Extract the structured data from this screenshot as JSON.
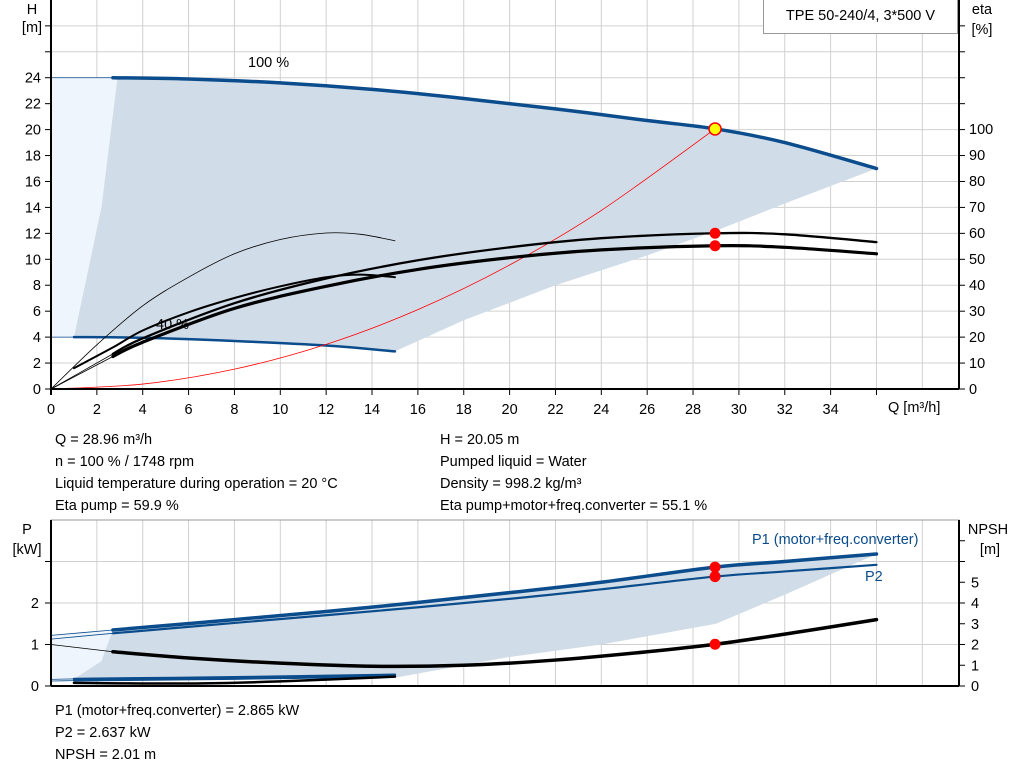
{
  "title": "TPE 50-240/4, 3*500 V",
  "colors": {
    "curve_blue": "#0b4c8c",
    "area_dark": "#d0dce8",
    "area_light": "#eef5fc",
    "grid": "#d0d0d0",
    "duty_point": "#ff0000",
    "duty_point_fill_main": "#ffff00",
    "system_curve": "#ff0000"
  },
  "info_top_left": [
    "Q = 28.96 m³/h",
    "n = 100 % / 1748 rpm",
    "Liquid temperature during operation = 20 °C",
    "Eta pump = 59.9 %"
  ],
  "info_top_right": [
    "H = 20.05 m",
    "Pumped liquid = Water",
    "Density = 998.2 kg/m³",
    "Eta pump+motor+freq.converter = 55.1 %"
  ],
  "info_bottom": [
    "P1 (motor+freq.converter) = 2.865 kW",
    "P2 = 2.637 kW",
    "NPSH = 2.01 m"
  ],
  "chart_data": [
    {
      "type": "line",
      "title": "TPE 50-240/4, 3*500 V",
      "xlabel": "Q [m³/h]",
      "ylabel_left": [
        "H",
        "[m]"
      ],
      "ylabel_right": [
        "eta",
        "[%]"
      ],
      "xlim": [
        0,
        38
      ],
      "ylim_left": [
        0,
        30
      ],
      "ylim_right_eta": [
        0,
        115
      ],
      "x_ticks": [
        "0",
        "2",
        "4",
        "6",
        "8",
        "10",
        "12",
        "14",
        "16",
        "18",
        "20",
        "22",
        "24",
        "26",
        "28",
        "30",
        "32",
        "34"
      ],
      "y_ticks_left": [
        "0",
        "2",
        "4",
        "6",
        "8",
        "10",
        "12",
        "14",
        "16",
        "18",
        "20",
        "22",
        "24"
      ],
      "y_ticks_right": [
        "0",
        "10",
        "20",
        "30",
        "40",
        "50",
        "60",
        "70",
        "80",
        "90",
        "100"
      ],
      "grid": true,
      "annotations": [
        "100 %",
        "40 %"
      ],
      "series": [
        {
          "label": "H 100 %",
          "axis": "left",
          "points": [
            [
              2.7,
              24
            ],
            [
              6,
              23.9
            ],
            [
              10,
              23.6
            ],
            [
              14,
              23.1
            ],
            [
              18,
              22.4
            ],
            [
              22,
              21.6
            ],
            [
              26,
              20.7
            ],
            [
              29,
              20.05
            ],
            [
              32,
              19
            ],
            [
              36,
              17
            ]
          ],
          "lead_in": [
            [
              0,
              24
            ],
            [
              2.7,
              24
            ]
          ]
        },
        {
          "label": "H 40 %",
          "axis": "left",
          "points": [
            [
              1,
              4
            ],
            [
              4,
              3.95
            ],
            [
              8,
              3.7
            ],
            [
              12,
              3.35
            ],
            [
              15,
              2.9
            ]
          ],
          "lead_in": [
            [
              0,
              4
            ],
            [
              1,
              4
            ]
          ]
        },
        {
          "label": "System curve",
          "axis": "left",
          "points": [
            [
              0,
              0
            ],
            [
              4,
              0.38
            ],
            [
              8,
              1.53
            ],
            [
              12,
              3.44
            ],
            [
              16,
              6.12
            ],
            [
              20,
              9.56
            ],
            [
              24,
              13.77
            ],
            [
              28.96,
              20.05
            ]
          ]
        },
        {
          "label": "Eta pump 40 %",
          "axis": "right",
          "points": [
            [
              0,
              0
            ],
            [
              2,
              17
            ],
            [
              4,
              32
            ],
            [
              6,
              43
            ],
            [
              8,
              52
            ],
            [
              10,
              57.5
            ],
            [
              12,
              60
            ],
            [
              13.5,
              59.5
            ],
            [
              15,
              57
            ]
          ]
        },
        {
          "label": "Eta pump+motor 40 %",
          "axis": "right",
          "points": [
            [
              1,
              8
            ],
            [
              2.7,
              16
            ],
            [
              4,
              22.5
            ],
            [
              6,
              29.5
            ],
            [
              8,
              35
            ],
            [
              10,
              39.5
            ],
            [
              12,
              43
            ],
            [
              13.5,
              44
            ],
            [
              15,
              43
            ]
          ]
        },
        {
          "label": "Eta pump",
          "axis": "right",
          "points": [
            [
              2.7,
              13.5
            ],
            [
              4,
              19.5
            ],
            [
              8,
              33
            ],
            [
              12,
              42.5
            ],
            [
              16,
              49.5
            ],
            [
              20,
              54.5
            ],
            [
              24,
              58
            ],
            [
              28.96,
              59.9
            ],
            [
              32,
              59.5
            ],
            [
              36,
              56.5
            ]
          ],
          "lead_in": [
            [
              0,
              0
            ],
            [
              2.7,
              13.5
            ]
          ]
        },
        {
          "label": "Eta pump+motor+freq.converter",
          "axis": "right",
          "points": [
            [
              2.7,
              12.5
            ],
            [
              4,
              18
            ],
            [
              8,
              31
            ],
            [
              12,
              39.5
            ],
            [
              16,
              46
            ],
            [
              20,
              50.5
            ],
            [
              24,
              53.5
            ],
            [
              28.96,
              55.1
            ],
            [
              32,
              54.5
            ],
            [
              36,
              52
            ]
          ],
          "lead_in": [
            [
              0,
              0
            ],
            [
              2.7,
              12.5
            ]
          ]
        }
      ],
      "area_lower_boundary": [
        [
          36,
          17
        ],
        [
          32,
          14.3
        ],
        [
          29,
          12.2
        ],
        [
          26,
          10.3
        ],
        [
          22,
          8
        ],
        [
          18,
          5.3
        ],
        [
          15,
          2.9
        ]
      ],
      "area_left_boundary": [
        [
          2.9,
          24
        ],
        [
          2.2,
          14
        ],
        [
          1,
          4
        ]
      ],
      "duty_points": [
        {
          "q": 28.96,
          "h": 20.05
        },
        {
          "q": 28.96,
          "eta": 59.9
        },
        {
          "q": 28.96,
          "eta": 55.1
        }
      ]
    },
    {
      "type": "line",
      "ylabel_left": [
        "P",
        "[kW]"
      ],
      "ylabel_right": [
        "NPSH",
        "[m]"
      ],
      "xlim": [
        0,
        38
      ],
      "ylim_left": [
        0,
        4
      ],
      "ylim_right": [
        0,
        8
      ],
      "y_ticks_left": [
        "0",
        "1",
        "2"
      ],
      "y_ticks_right": [
        "0",
        "1",
        "2",
        "3",
        "4",
        "5"
      ],
      "grid": true,
      "series_labels": [
        "P1 (motor+freq.converter)",
        "P2"
      ],
      "series": [
        {
          "label": "P1 (motor+freq.converter)",
          "axis": "left",
          "points": [
            [
              2.7,
              1.35
            ],
            [
              8,
              1.6
            ],
            [
              14,
              1.9
            ],
            [
              20,
              2.25
            ],
            [
              24,
              2.5
            ],
            [
              28.96,
              2.865
            ],
            [
              32,
              3.0
            ],
            [
              36,
              3.18
            ]
          ],
          "lead_in": [
            [
              0,
              1.22
            ],
            [
              2.7,
              1.35
            ]
          ]
        },
        {
          "label": "P2",
          "axis": "left",
          "points": [
            [
              2.7,
              1.27
            ],
            [
              8,
              1.52
            ],
            [
              14,
              1.8
            ],
            [
              20,
              2.1
            ],
            [
              24,
              2.33
            ],
            [
              28.96,
              2.637
            ],
            [
              32,
              2.76
            ],
            [
              36,
              2.92
            ]
          ],
          "lead_in": [
            [
              0,
              1.13
            ],
            [
              2.7,
              1.27
            ]
          ]
        },
        {
          "label": "NPSH",
          "axis": "right",
          "points": [
            [
              2.7,
              1.65
            ],
            [
              6,
              1.35
            ],
            [
              10,
              1.1
            ],
            [
              14,
              0.95
            ],
            [
              18,
              1.0
            ],
            [
              22,
              1.25
            ],
            [
              26,
              1.65
            ],
            [
              28.96,
              2.01
            ],
            [
              32,
              2.5
            ],
            [
              36,
              3.2
            ]
          ],
          "lead_in": [
            [
              0,
              2.0
            ],
            [
              2.7,
              1.65
            ]
          ]
        },
        {
          "label": "P1 40 %",
          "axis": "left",
          "points": [
            [
              1,
              0.17
            ],
            [
              8,
              0.21
            ],
            [
              15,
              0.27
            ]
          ],
          "lead_in": [
            [
              0,
              0.16
            ],
            [
              1,
              0.17
            ]
          ]
        },
        {
          "label": "P2 40 %",
          "axis": "left",
          "points": [
            [
              1,
              0.13
            ],
            [
              8,
              0.17
            ],
            [
              15,
              0.23
            ]
          ],
          "lead_in": [
            [
              0,
              0.12
            ],
            [
              1,
              0.13
            ]
          ]
        },
        {
          "label": "NPSH 40 %",
          "axis": "right",
          "points": [
            [
              1,
              0.15
            ],
            [
              6,
              0.12
            ],
            [
              10,
              0.22
            ],
            [
              15,
              0.45
            ]
          ]
        }
      ],
      "area_lower_boundary": [
        [
          36,
          2.9
        ],
        [
          32,
          2.2
        ],
        [
          29,
          1.5
        ],
        [
          24,
          1.0
        ],
        [
          20,
          0.7
        ],
        [
          15,
          0.2
        ]
      ],
      "duty_points": [
        {
          "q": 28.96,
          "p": 2.865
        },
        {
          "q": 28.96,
          "p": 2.637
        },
        {
          "q": 28.96,
          "npsh": 2.01
        }
      ]
    }
  ]
}
